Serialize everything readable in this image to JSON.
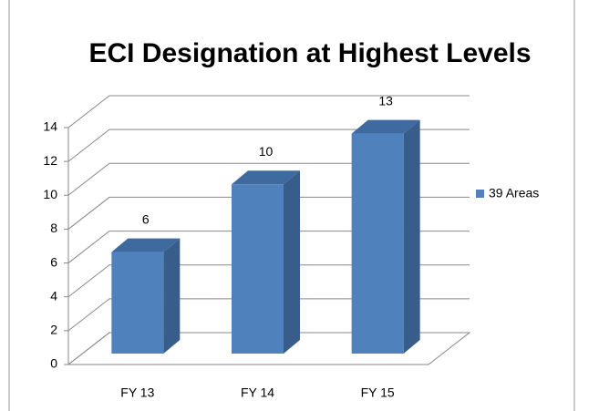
{
  "chart_data": {
    "type": "bar3d",
    "title": "ECI Designation at Highest Levels",
    "categories": [
      "FY 13",
      "FY 14",
      "FY 15"
    ],
    "series": [
      {
        "name": "39 Areas",
        "color": "#4f81bd",
        "values": [
          6,
          10,
          13
        ]
      }
    ],
    "ylim": [
      0,
      14
    ],
    "yticks": [
      0,
      2,
      4,
      6,
      8,
      10,
      12,
      14
    ],
    "grid": true,
    "legend": "right"
  }
}
